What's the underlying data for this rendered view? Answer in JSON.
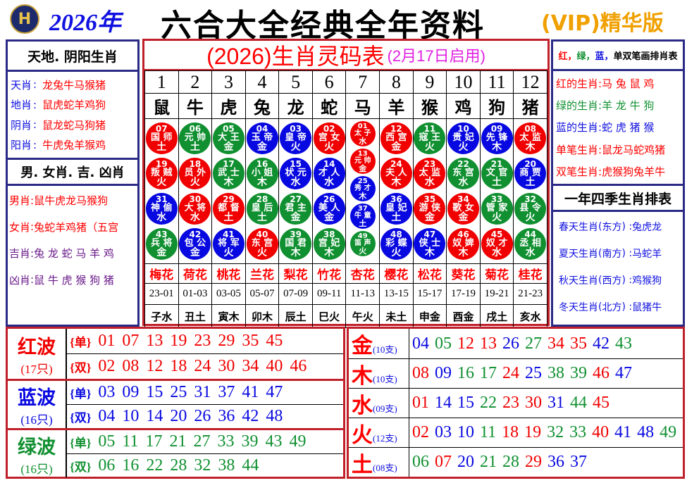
{
  "header": {
    "logo_text": "H",
    "year": "2026年",
    "title": "六合大全经典全年资料",
    "vip": "(VIP)精华版"
  },
  "left": {
    "title1": "天地. 阴阳生肖",
    "rows1": [
      {
        "k": "天肖",
        "v": "龙兔牛马猴猪"
      },
      {
        "k": "地肖",
        "v": "鼠虎蛇羊鸡狗"
      },
      {
        "k": "阴肖",
        "v": "鼠龙蛇马狗猪"
      },
      {
        "k": "阳肖",
        "v": "牛虎兔羊猴鸡"
      }
    ],
    "title2": "男. 女肖. 吉. 凶肖",
    "rows2": [
      {
        "k": "男肖",
        "v": "鼠牛虎龙马猴狗",
        "color": "#f00"
      },
      {
        "k": "女肖",
        "v": "兔蛇羊鸡猪（五宫",
        "color": "#f00"
      },
      {
        "k": "吉肖",
        "v": "兔 龙 蛇 马 羊 鸡",
        "color": "#6a1a8a"
      },
      {
        "k": "凶肖",
        "v": "鼠 牛 虎 猴 狗 猪",
        "color": "#6a1a8a"
      }
    ]
  },
  "center": {
    "title": "(2026)生肖灵码表",
    "subtitle": "(2月17日启用)",
    "columns": [
      {
        "num": "1",
        "zodiac": "鼠",
        "flower": "梅花",
        "time": "23-01",
        "branch": "子水",
        "balls": [
          {
            "n": "07",
            "name": "国 师",
            "el": "土",
            "c": "r"
          },
          {
            "n": "19",
            "name": "叛 贼",
            "el": "火",
            "c": "r"
          },
          {
            "n": "31",
            "name": "神 偷",
            "el": "水",
            "c": "b"
          },
          {
            "n": "43",
            "name": "兵 将",
            "el": "金",
            "c": "g"
          }
        ]
      },
      {
        "num": "2",
        "zodiac": "牛",
        "flower": "荷花",
        "time": "01-03",
        "branch": "丑土",
        "balls": [
          {
            "n": "06",
            "name": "元 帅",
            "el": "土",
            "c": "g"
          },
          {
            "n": "18",
            "name": "员 外",
            "el": "火",
            "c": "r"
          },
          {
            "n": "30",
            "name": "大 将",
            "el": "水",
            "c": "r"
          },
          {
            "n": "42",
            "name": "包 公",
            "el": "金",
            "c": "b"
          }
        ]
      },
      {
        "num": "3",
        "zodiac": "虎",
        "flower": "桃花",
        "time": "03-05",
        "branch": "寅木",
        "balls": [
          {
            "n": "05",
            "name": "大 王",
            "el": "金",
            "c": "g"
          },
          {
            "n": "17",
            "name": "武 士",
            "el": "木",
            "c": "g"
          },
          {
            "n": "29",
            "name": "都 督",
            "el": "土",
            "c": "r"
          },
          {
            "n": "41",
            "name": "将 军",
            "el": "火",
            "c": "b"
          }
        ]
      },
      {
        "num": "4",
        "zodiac": "兔",
        "flower": "兰花",
        "time": "05-07",
        "branch": "卯木",
        "balls": [
          {
            "n": "04",
            "name": "玉 帝",
            "el": "金",
            "c": "b"
          },
          {
            "n": "16",
            "name": "小 姐",
            "el": "木",
            "c": "g"
          },
          {
            "n": "28",
            "name": "皇 后",
            "el": "土",
            "c": "g"
          },
          {
            "n": "40",
            "name": "东 宫",
            "el": "火",
            "c": "r"
          }
        ]
      },
      {
        "num": "5",
        "zodiac": "龙",
        "flower": "梨花",
        "time": "07-09",
        "branch": "辰土",
        "balls": [
          {
            "n": "03",
            "name": "皇 帝",
            "el": "火",
            "c": "b"
          },
          {
            "n": "15",
            "name": "状 元",
            "el": "水",
            "c": "b"
          },
          {
            "n": "27",
            "name": "君 主",
            "el": "金",
            "c": "g"
          },
          {
            "n": "39",
            "name": "国 君",
            "el": "木",
            "c": "g"
          }
        ]
      },
      {
        "num": "6",
        "zodiac": "蛇",
        "flower": "竹花",
        "time": "09-11",
        "branch": "巳火",
        "balls": [
          {
            "n": "02",
            "name": "宫 女",
            "el": "火",
            "c": "r"
          },
          {
            "n": "14",
            "name": "才 人",
            "el": "水",
            "c": "b"
          },
          {
            "n": "26",
            "name": "美 人",
            "el": "金",
            "c": "b"
          },
          {
            "n": "38",
            "name": "宫 妃",
            "el": "木",
            "c": "g"
          }
        ]
      },
      {
        "num": "7",
        "zodiac": "马",
        "flower": "杏花",
        "time": "11-13",
        "branch": "午火",
        "balls": [
          {
            "n": "01",
            "name": "太 子",
            "el": "水",
            "c": "r"
          },
          {
            "n": "13",
            "name": "元 帅",
            "el": "金",
            "c": "r"
          },
          {
            "n": "25",
            "name": "秀 才",
            "el": "木",
            "c": "b"
          },
          {
            "n": "37",
            "name": "牛 童",
            "el": "土",
            "c": "b"
          },
          {
            "n": "49",
            "name": "笛 声",
            "el": "火",
            "c": "g"
          }
        ]
      },
      {
        "num": "8",
        "zodiac": "羊",
        "flower": "樱花",
        "time": "13-15",
        "branch": "未土",
        "balls": [
          {
            "n": "12",
            "name": "西 宫",
            "el": "金",
            "c": "r"
          },
          {
            "n": "24",
            "name": "夫 人",
            "el": "木",
            "c": "r"
          },
          {
            "n": "36",
            "name": "皇 妃",
            "el": "土",
            "c": "b"
          },
          {
            "n": "48",
            "name": "彩 蝶",
            "el": "火",
            "c": "b"
          }
        ]
      },
      {
        "num": "9",
        "zodiac": "猴",
        "flower": "松花",
        "time": "15-17",
        "branch": "申金",
        "balls": [
          {
            "n": "11",
            "name": "寇 王",
            "el": "火",
            "c": "g"
          },
          {
            "n": "23",
            "name": "太 监",
            "el": "水",
            "c": "r"
          },
          {
            "n": "35",
            "name": "游 侠",
            "el": "金",
            "c": "r"
          },
          {
            "n": "47",
            "name": "侠 士",
            "el": "木",
            "c": "b"
          }
        ]
      },
      {
        "num": "10",
        "zodiac": "鸡",
        "flower": "葵花",
        "time": "17-19",
        "branch": "酉金",
        "balls": [
          {
            "n": "10",
            "name": "贵 妃",
            "el": "火",
            "c": "b"
          },
          {
            "n": "22",
            "name": "东 宫",
            "el": "水",
            "c": "g"
          },
          {
            "n": "34",
            "name": "歌 女",
            "el": "金",
            "c": "r"
          },
          {
            "n": "46",
            "name": "奴 婢",
            "el": "木",
            "c": "r"
          }
        ]
      },
      {
        "num": "11",
        "zodiac": "狗",
        "flower": "菊花",
        "time": "19-21",
        "branch": "戌土",
        "balls": [
          {
            "n": "09",
            "name": "先 锋",
            "el": "木",
            "c": "b"
          },
          {
            "n": "21",
            "name": "文 官",
            "el": "土",
            "c": "g"
          },
          {
            "n": "33",
            "name": "管 家",
            "el": "火",
            "c": "g"
          },
          {
            "n": "45",
            "name": "奴 才",
            "el": "水",
            "c": "r"
          }
        ]
      },
      {
        "num": "12",
        "zodiac": "猪",
        "flower": "桂花",
        "time": "21-23",
        "branch": "亥水",
        "balls": [
          {
            "n": "08",
            "name": "太 监",
            "el": "木",
            "c": "r"
          },
          {
            "n": "20",
            "name": "商 贾",
            "el": "土",
            "c": "b"
          },
          {
            "n": "32",
            "name": "县 令",
            "el": "火",
            "c": "g"
          },
          {
            "n": "44",
            "name": "丞 相",
            "el": "水",
            "c": "g"
          }
        ]
      }
    ]
  },
  "right": {
    "title1_parts": [
      {
        "t": "红",
        "color": "#f00"
      },
      {
        "t": "，",
        "color": "#f00"
      },
      {
        "t": "绿",
        "color": "#109030"
      },
      {
        "t": "，",
        "color": "#109030"
      },
      {
        "t": "蓝",
        "color": "#1010e0"
      },
      {
        "t": "，",
        "color": "#1010e0"
      },
      {
        "t": "单双笔画排肖表",
        "color": "#000"
      }
    ],
    "rows1": [
      {
        "k": "红的生肖:",
        "v": "马 兔 鼠 鸡",
        "color": "#f00"
      },
      {
        "k": "绿的生肖:",
        "v": "羊 龙 牛 狗",
        "color": "#109030"
      },
      {
        "k": "蓝的生肖:",
        "v": "蛇 虎 猪 猴",
        "color": "#1010e0"
      },
      {
        "k": "单笔生肖:",
        "v": "鼠龙马蛇鸡猪",
        "color": "#f00"
      },
      {
        "k": "双笔生肖:",
        "v": "虎猴狗兔羊牛",
        "color": "#f00"
      }
    ],
    "title2": "一年四季生肖排表",
    "rows2": [
      {
        "k": "春天生肖",
        "d": "东方",
        "v": "兔虎龙"
      },
      {
        "k": "夏天生肖",
        "d": "南方",
        "v": "马蛇羊"
      },
      {
        "k": "秋天生肖",
        "d": "西方",
        "v": "鸡猴狗"
      },
      {
        "k": "冬天生肖",
        "d": "北方",
        "v": "鼠猪牛"
      }
    ]
  },
  "colors": {
    "r": "#f00000",
    "g": "#109030",
    "b": "#0808e0",
    "border_red": "#c0202a",
    "border_blue": "#2a2a86"
  },
  "waves": [
    {
      "name": "红波",
      "count": "(17只)",
      "c": "r",
      "odd_tag": "{单}",
      "odd": [
        "01",
        "07",
        "13",
        "19",
        "23",
        "29",
        "35",
        "45"
      ],
      "even_tag": "{双}",
      "even": [
        "02",
        "08",
        "12",
        "18",
        "24",
        "30",
        "34",
        "40",
        "46"
      ]
    },
    {
      "name": "蓝波",
      "count": "(16只)",
      "c": "b",
      "odd_tag": "{单}",
      "odd": [
        "03",
        "09",
        "15",
        "25",
        "31",
        "37",
        "41",
        "47"
      ],
      "even_tag": "{双}",
      "even": [
        "04",
        "10",
        "14",
        "20",
        "26",
        "36",
        "42",
        "48"
      ]
    },
    {
      "name": "绿波",
      "count": "(16只)",
      "c": "g",
      "odd_tag": "{单}",
      "odd": [
        "05",
        "11",
        "17",
        "21",
        "27",
        "33",
        "39",
        "43",
        "49"
      ],
      "even_tag": "{双}",
      "even": [
        "06",
        "16",
        "22",
        "28",
        "32",
        "38",
        "44"
      ]
    }
  ],
  "elements": [
    {
      "name": "金",
      "count": "(10支)",
      "nums": [
        "04",
        "05",
        "12",
        "13",
        "26",
        "27",
        "34",
        "35",
        "42",
        "43"
      ]
    },
    {
      "name": "木",
      "count": "(10支)",
      "nums": [
        "08",
        "09",
        "16",
        "17",
        "24",
        "25",
        "38",
        "39",
        "46",
        "47"
      ]
    },
    {
      "name": "水",
      "count": "(09支)",
      "nums": [
        "01",
        "14",
        "15",
        "22",
        "23",
        "30",
        "31",
        "44",
        "45"
      ]
    },
    {
      "name": "火",
      "count": "(12支)",
      "nums": [
        "02",
        "03",
        "10",
        "11",
        "18",
        "19",
        "32",
        "33",
        "40",
        "41",
        "48",
        "49"
      ]
    },
    {
      "name": "土",
      "count": "(08支)",
      "nums": [
        "06",
        "07",
        "20",
        "21",
        "28",
        "29",
        "36",
        "37"
      ]
    }
  ]
}
